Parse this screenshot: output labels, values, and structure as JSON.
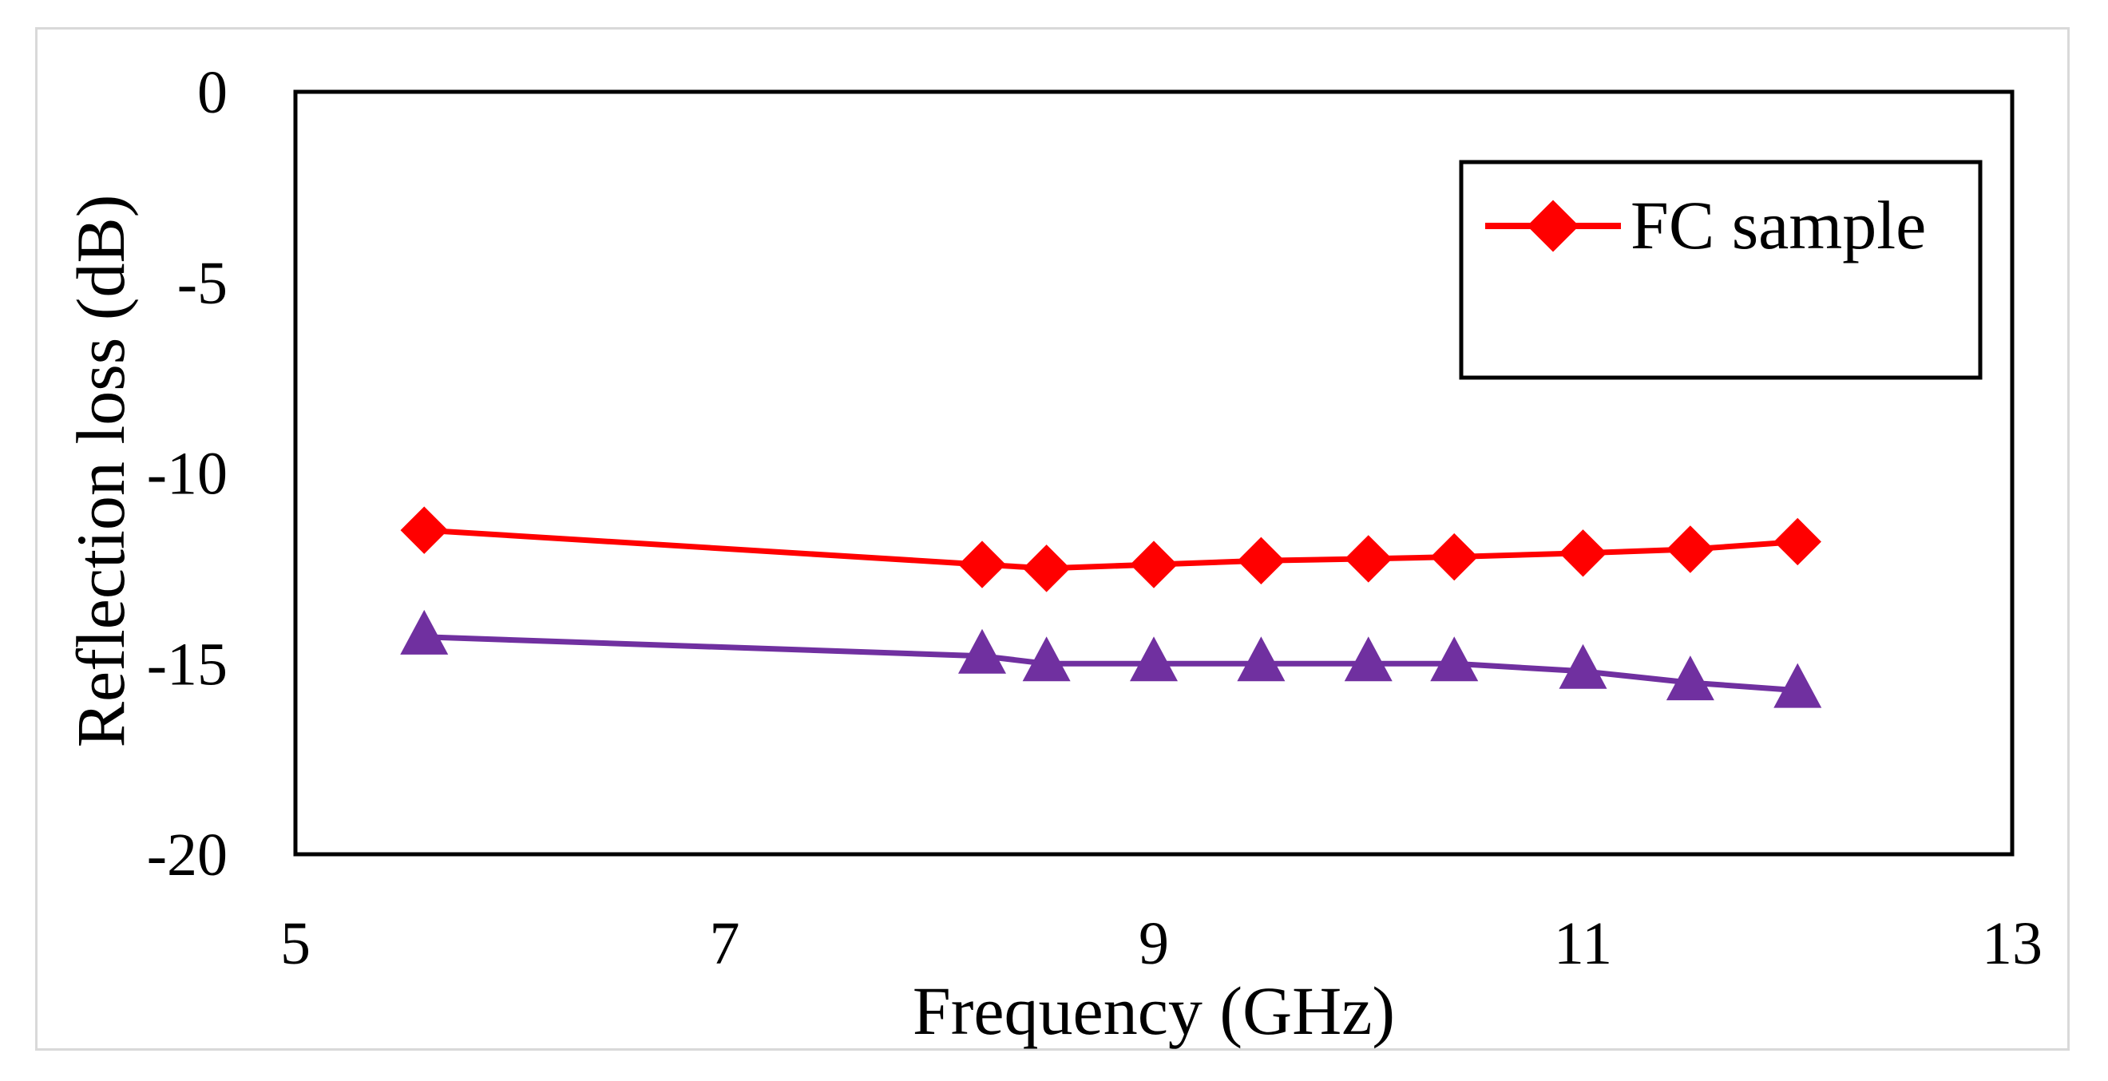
{
  "chart_data": {
    "type": "line",
    "title": "",
    "xlabel": "Frequency (GHz)",
    "ylabel": "Reflection loss (dB)",
    "xlim": [
      5,
      13
    ],
    "ylim": [
      -20,
      0
    ],
    "xticks": [
      5,
      7,
      9,
      11,
      13
    ],
    "yticks": [
      0,
      -5,
      -10,
      -15,
      -20
    ],
    "grid": false,
    "legend": {
      "placement": "top-right",
      "entries": [
        "FC sample"
      ]
    },
    "series": [
      {
        "name": "FC sample",
        "color": "#ff0000",
        "marker": "diamond",
        "in_legend": true,
        "x": [
          5.6,
          8.2,
          8.5,
          9.0,
          9.5,
          10.0,
          10.4,
          11.0,
          11.5,
          12.0
        ],
        "y": [
          -11.5,
          -12.4,
          -12.5,
          -12.4,
          -12.3,
          -12.25,
          -12.2,
          -12.1,
          -12.0,
          -11.8
        ]
      },
      {
        "name": "",
        "color": "#7030a0",
        "marker": "triangle",
        "in_legend": false,
        "x": [
          5.6,
          8.2,
          8.5,
          9.0,
          9.5,
          10.0,
          10.4,
          11.0,
          11.5,
          12.0
        ],
        "y": [
          -14.3,
          -14.8,
          -15.0,
          -15.0,
          -15.0,
          -15.0,
          -15.0,
          -15.2,
          -15.5,
          -15.7
        ]
      }
    ]
  }
}
